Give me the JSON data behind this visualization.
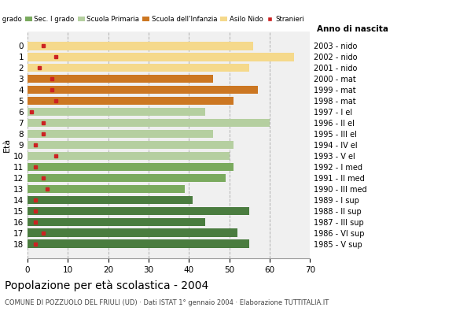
{
  "ages": [
    0,
    1,
    2,
    3,
    4,
    5,
    6,
    7,
    8,
    9,
    10,
    11,
    12,
    13,
    14,
    15,
    16,
    17,
    18
  ],
  "bar_values": [
    56,
    66,
    55,
    46,
    57,
    51,
    44,
    60,
    46,
    51,
    50,
    51,
    49,
    39,
    41,
    55,
    44,
    52,
    55
  ],
  "stranieri_values": [
    4,
    7,
    3,
    6,
    6,
    7,
    1,
    4,
    4,
    2,
    7,
    2,
    4,
    5,
    2,
    2,
    2,
    4,
    2
  ],
  "anno_nascita": [
    "2003 - nido",
    "2002 - nido",
    "2001 - nido",
    "2000 - mat",
    "1999 - mat",
    "1998 - mat",
    "1997 - I el",
    "1996 - II el",
    "1995 - III el",
    "1994 - IV el",
    "1993 - V el",
    "1992 - I med",
    "1991 - II med",
    "1990 - III med",
    "1989 - I sup",
    "1988 - II sup",
    "1987 - III sup",
    "1986 - VI sup",
    "1985 - V sup"
  ],
  "school_types": {
    "sec2": {
      "ages": [
        14,
        15,
        16,
        17,
        18
      ],
      "color": "#4a7c3f"
    },
    "sec1": {
      "ages": [
        11,
        12,
        13
      ],
      "color": "#7aaa5e"
    },
    "primaria": {
      "ages": [
        6,
        7,
        8,
        9,
        10
      ],
      "color": "#b5cfa0"
    },
    "infanzia": {
      "ages": [
        3,
        4,
        5
      ],
      "color": "#cc7722"
    },
    "nido": {
      "ages": [
        0,
        1,
        2
      ],
      "color": "#f5d98b"
    }
  },
  "legend_labels": [
    "Sec. II grado",
    "Sec. I grado",
    "Scuola Primaria",
    "Scuola dell'Infanzia",
    "Asilo Nido",
    "Stranieri"
  ],
  "legend_colors": [
    "#4a7c3f",
    "#7aaa5e",
    "#b5cfa0",
    "#cc7722",
    "#f5d98b",
    "#cc2222"
  ],
  "stranieri_color": "#cc2222",
  "ylabel": "Età",
  "title": "Popolazione per età scolastica - 2004",
  "subtitle": "COMUNE DI POZZUOLO DEL FRIULI (UD) · Dati ISTAT 1° gennaio 2004 · Elaborazione TUTTITALIA.IT",
  "anno_label": "Anno di nascita",
  "xlim": [
    0,
    70
  ],
  "xticks": [
    0,
    10,
    20,
    30,
    40,
    50,
    60,
    70
  ],
  "grid_color": "#b0b0b0",
  "bg_color": "#ffffff"
}
